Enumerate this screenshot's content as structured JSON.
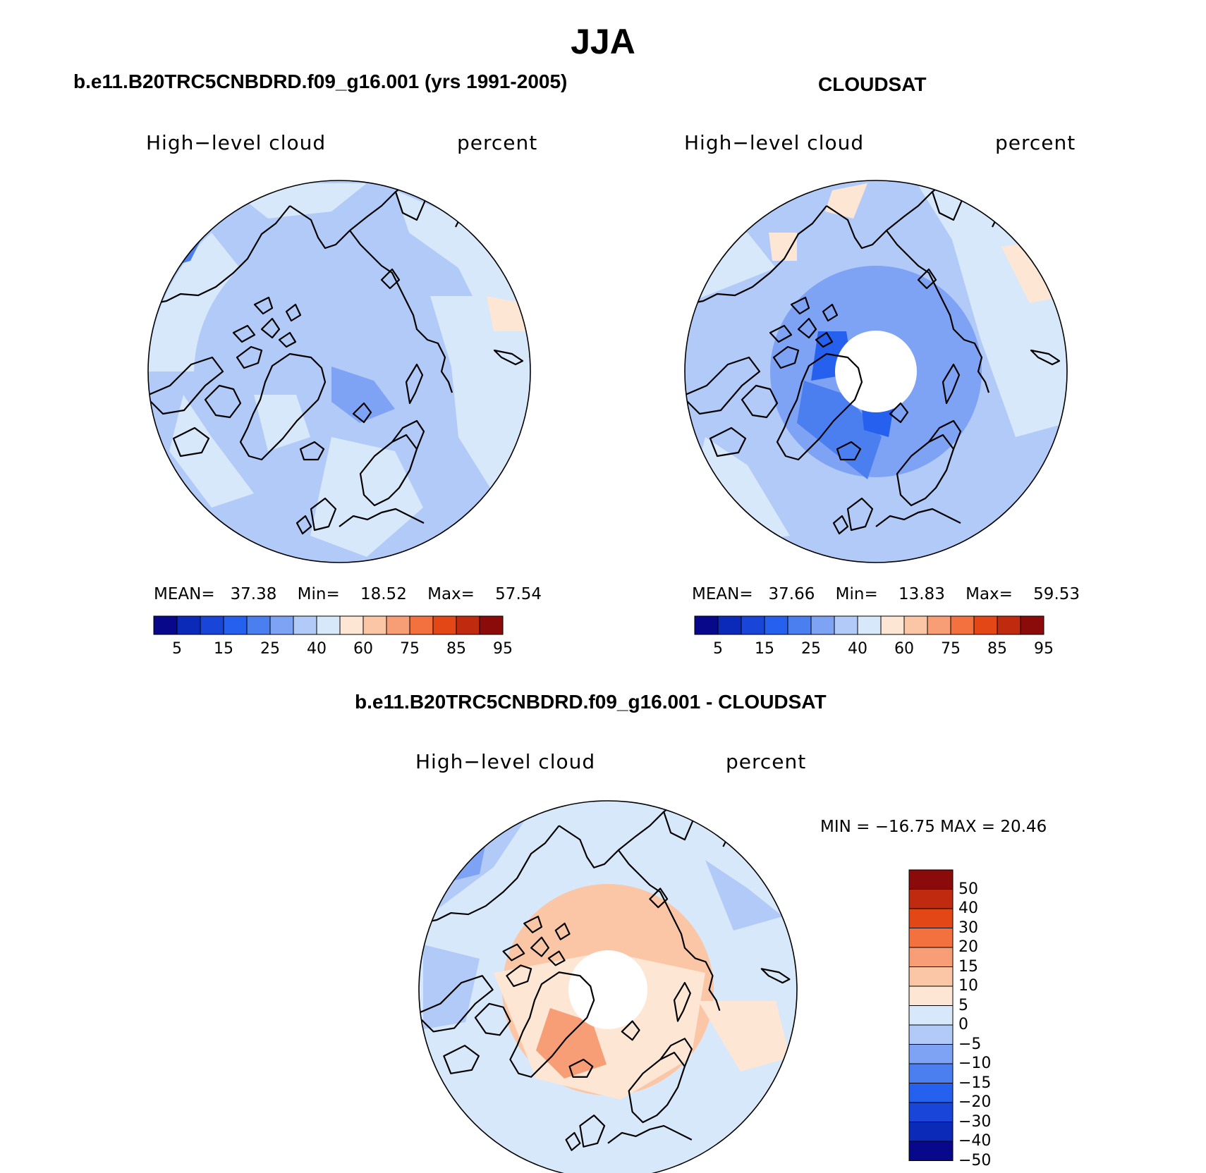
{
  "title": "JJA",
  "colors": {
    "seq": [
      "#08088a",
      "#0c2ab8",
      "#1946d8",
      "#2660ee",
      "#4b7ff0",
      "#7ea2f4",
      "#b2caf8",
      "#d8e8fb",
      "#fde6d4",
      "#fbc6a6",
      "#f89e76",
      "#f2713f",
      "#e44716",
      "#c02a0e",
      "#8b0a0a"
    ],
    "diff": [
      "#08088a",
      "#0c2ab8",
      "#1946d8",
      "#2660ee",
      "#4b7ff0",
      "#7ea2f4",
      "#b2caf8",
      "#d8e8fb",
      "#fde6d4",
      "#fbc6a6",
      "#f89e76",
      "#f2713f",
      "#e44716",
      "#c02a0e",
      "#8b0a0a"
    ],
    "coast": "#000000"
  },
  "panels": {
    "model": {
      "title": "b.e11.B20TRC5CNBDRD.f09_g16.001 (yrs 1991-2005)",
      "variable": "High−level cloud",
      "units": "percent",
      "stats": {
        "mean_label": "MEAN=",
        "mean": "37.38",
        "min_label": "Min=",
        "min": "18.52",
        "max_label": "Max=",
        "max": "57.54"
      }
    },
    "obs": {
      "title": "CLOUDSAT",
      "variable": "High−level cloud",
      "units": "percent",
      "stats": {
        "mean_label": "MEAN=",
        "mean": "37.66",
        "min_label": "Min=",
        "min": "13.83",
        "max_label": "Max=",
        "max": "59.53"
      }
    },
    "diff": {
      "title": "b.e11.B20TRC5CNBDRD.f09_g16.001 - CLOUDSAT",
      "variable": "High−level cloud",
      "units": "percent",
      "stats_text": "MIN = −16.75 MAX =   20.46"
    }
  },
  "colorbar_h": {
    "labels": [
      "5",
      "15",
      "25",
      "40",
      "60",
      "75",
      "85",
      "95"
    ]
  },
  "colorbar_v": {
    "labels": [
      "50",
      "40",
      "30",
      "20",
      "15",
      "10",
      "5",
      "0",
      "−5",
      "−10",
      "−15",
      "−20",
      "−30",
      "−40",
      "−50"
    ]
  }
}
